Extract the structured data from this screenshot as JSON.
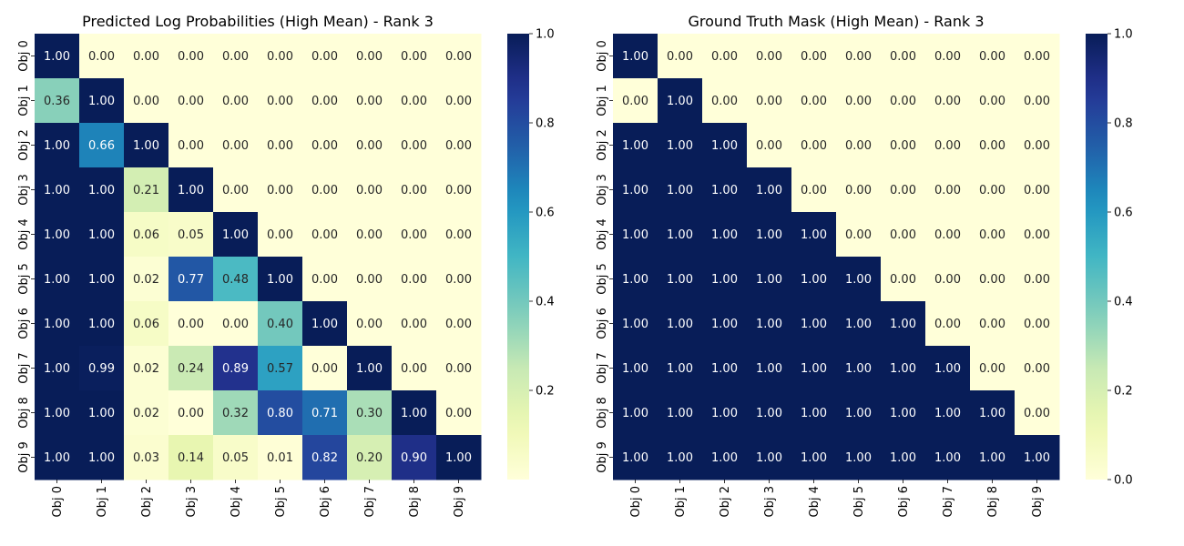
{
  "chart_data": [
    {
      "type": "heatmap",
      "title": "Predicted Log Probabilities (High Mean) - Rank 3",
      "x_categories": [
        "Obj 0",
        "Obj 1",
        "Obj 2",
        "Obj 3",
        "Obj 4",
        "Obj 5",
        "Obj 6",
        "Obj 7",
        "Obj 8",
        "Obj 9"
      ],
      "y_categories": [
        "Obj 0",
        "Obj 1",
        "Obj 2",
        "Obj 3",
        "Obj 4",
        "Obj 5",
        "Obj 6",
        "Obj 7",
        "Obj 8",
        "Obj 9"
      ],
      "values": [
        [
          1.0,
          0.0,
          0.0,
          0.0,
          0.0,
          0.0,
          0.0,
          0.0,
          0.0,
          0.0
        ],
        [
          0.36,
          1.0,
          0.0,
          0.0,
          0.0,
          0.0,
          0.0,
          0.0,
          0.0,
          0.0
        ],
        [
          1.0,
          0.66,
          1.0,
          0.0,
          0.0,
          0.0,
          0.0,
          0.0,
          0.0,
          0.0
        ],
        [
          1.0,
          1.0,
          0.21,
          1.0,
          0.0,
          0.0,
          0.0,
          0.0,
          0.0,
          0.0
        ],
        [
          1.0,
          1.0,
          0.06,
          0.05,
          1.0,
          0.0,
          0.0,
          0.0,
          0.0,
          0.0
        ],
        [
          1.0,
          1.0,
          0.02,
          0.77,
          0.48,
          1.0,
          0.0,
          0.0,
          0.0,
          0.0
        ],
        [
          1.0,
          1.0,
          0.06,
          0.0,
          0.0,
          0.4,
          1.0,
          0.0,
          0.0,
          0.0
        ],
        [
          1.0,
          0.99,
          0.02,
          0.24,
          0.89,
          0.57,
          0.0,
          1.0,
          0.0,
          0.0
        ],
        [
          1.0,
          1.0,
          0.02,
          0.0,
          0.32,
          0.8,
          0.71,
          0.3,
          1.0,
          0.0
        ],
        [
          1.0,
          1.0,
          0.03,
          0.14,
          0.05,
          0.01,
          0.82,
          0.2,
          0.9,
          1.0
        ]
      ],
      "colorbar": {
        "range": [
          0.0,
          1.0
        ],
        "ticks": [
          0.2,
          0.4,
          0.6,
          0.8,
          1.0
        ],
        "tick_labels": [
          "0.2",
          "0.4",
          "0.6",
          "0.8",
          "1.0"
        ]
      },
      "colormap": "YlGnBu"
    },
    {
      "type": "heatmap",
      "title": "Ground Truth Mask (High Mean) - Rank 3",
      "x_categories": [
        "Obj 0",
        "Obj 1",
        "Obj 2",
        "Obj 3",
        "Obj 4",
        "Obj 5",
        "Obj 6",
        "Obj 7",
        "Obj 8",
        "Obj 9"
      ],
      "y_categories": [
        "Obj 0",
        "Obj 1",
        "Obj 2",
        "Obj 3",
        "Obj 4",
        "Obj 5",
        "Obj 6",
        "Obj 7",
        "Obj 8",
        "Obj 9"
      ],
      "values": [
        [
          1.0,
          0.0,
          0.0,
          0.0,
          0.0,
          0.0,
          0.0,
          0.0,
          0.0,
          0.0
        ],
        [
          0.0,
          1.0,
          0.0,
          0.0,
          0.0,
          0.0,
          0.0,
          0.0,
          0.0,
          0.0
        ],
        [
          1.0,
          1.0,
          1.0,
          0.0,
          0.0,
          0.0,
          0.0,
          0.0,
          0.0,
          0.0
        ],
        [
          1.0,
          1.0,
          1.0,
          1.0,
          0.0,
          0.0,
          0.0,
          0.0,
          0.0,
          0.0
        ],
        [
          1.0,
          1.0,
          1.0,
          1.0,
          1.0,
          0.0,
          0.0,
          0.0,
          0.0,
          0.0
        ],
        [
          1.0,
          1.0,
          1.0,
          1.0,
          1.0,
          1.0,
          0.0,
          0.0,
          0.0,
          0.0
        ],
        [
          1.0,
          1.0,
          1.0,
          1.0,
          1.0,
          1.0,
          1.0,
          0.0,
          0.0,
          0.0
        ],
        [
          1.0,
          1.0,
          1.0,
          1.0,
          1.0,
          1.0,
          1.0,
          1.0,
          0.0,
          0.0
        ],
        [
          1.0,
          1.0,
          1.0,
          1.0,
          1.0,
          1.0,
          1.0,
          1.0,
          1.0,
          0.0
        ],
        [
          1.0,
          1.0,
          1.0,
          1.0,
          1.0,
          1.0,
          1.0,
          1.0,
          1.0,
          1.0
        ]
      ],
      "colorbar": {
        "range": [
          0.0,
          1.0
        ],
        "ticks": [
          0.0,
          0.2,
          0.4,
          0.6,
          0.8,
          1.0
        ],
        "tick_labels": [
          "0.0",
          "0.2",
          "0.4",
          "0.6",
          "0.8",
          "1.0"
        ]
      },
      "colormap": "YlGnBu"
    }
  ]
}
